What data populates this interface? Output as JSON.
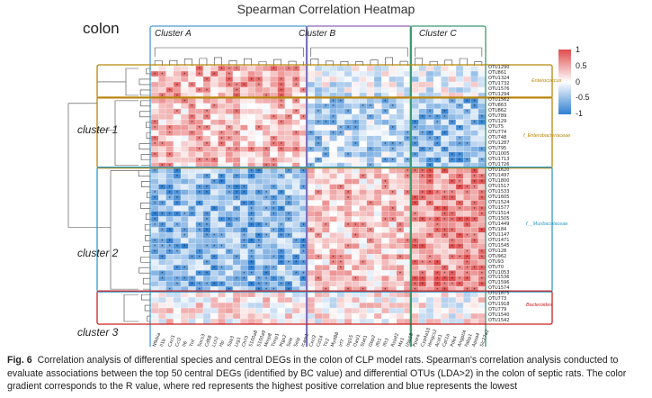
{
  "figure": {
    "title": "Spearman Correlation Heatmap",
    "panel": "colon",
    "column_clusters": [
      "Cluster A",
      "Cluster B",
      "Cluster C"
    ],
    "row_clusters": [
      "cluster 1",
      "cluster 2",
      "cluster 3"
    ],
    "highlight_boxes": [
      {
        "label": "Enterococcus",
        "color": "#b8860b"
      },
      {
        "label": "f_Enterobacteriaceae",
        "color": "#b8860b"
      },
      {
        "label": "f__Muribaculaceae",
        "color": "#2e9bc9"
      },
      {
        "label": "Bacteroides",
        "color": "#cc2222"
      }
    ],
    "colorbar": {
      "ticks": [
        "1",
        "0.5",
        "0",
        "-0.5",
        "-1"
      ],
      "high": "#e04b4b",
      "mid": "#ffffff",
      "low": "#2f7fd1"
    },
    "row_labels": [
      "OTU1290",
      "OTU861",
      "OTU1324",
      "OTU1732",
      "OTU1576",
      "OTU1294",
      "OTU1562",
      "OTU863",
      "OTU862",
      "OTU789",
      "OTU129",
      "OTU75",
      "OTU774",
      "OTU748",
      "OTU1287",
      "OTU795",
      "OTU1005",
      "OTU1713",
      "OTU1726",
      "OTU1620",
      "OTU1497",
      "OTU1800",
      "OTU1517",
      "OTU1533",
      "OTU1605",
      "OTU1524",
      "OTU1577",
      "OTU1514",
      "OTU1505",
      "OTU1449",
      "OTU184",
      "OTU1147",
      "OTU1471",
      "OTU1545",
      "OTU128",
      "OTU962",
      "OTU93",
      "OTU70",
      "OTU1053",
      "OTU1536",
      "OTU1596",
      "OTU1574",
      "OTU1875",
      "OTU773",
      "OTU1918",
      "OTU779",
      "OTU1540",
      "OTU1542"
    ],
    "col_labels": [
      "Nfkbia",
      "Il1b",
      "Cxcl1",
      "Ccl2",
      "Il6",
      "Tnf",
      "Socs3",
      "Cd68",
      "Lcn2",
      "Hp",
      "Saa3",
      "Lrg1",
      "Chil3",
      "S100a8",
      "S100a9",
      "Mmp8",
      "Timp1",
      "Ptgs2",
      "Sele",
      "Selp",
      "Icam1",
      "Cxcl2",
      "Cd14",
      "Tlr2",
      "Myd88",
      "Irf7",
      "Isg15",
      "Oasl1",
      "Stat1",
      "Gbp2",
      "Ifit1",
      "Ifit3",
      "Rsad2",
      "Mx1",
      "Usp18",
      "Ppara",
      "Cyp4a10",
      "Hmgcs2",
      "Acot1",
      "Cpt1a",
      "Pdk4",
      "Angptl4",
      "Fabp1",
      "Apoa4",
      "Slc27a2"
    ],
    "caption": {
      "fig_label": "Fig. 6",
      "text": "Correlation analysis of differential species and central DEGs in the colon of CLP model rats. Spearman's correlation analysis conducted to evaluate associations between the top 50 central DEGs (identified by BC value) and differential OTUs (LDA>2) in the colon of septic rats. The color gradient corresponds to the R value, where red represents the highest positive correlation and blue represents the lowest"
    }
  }
}
